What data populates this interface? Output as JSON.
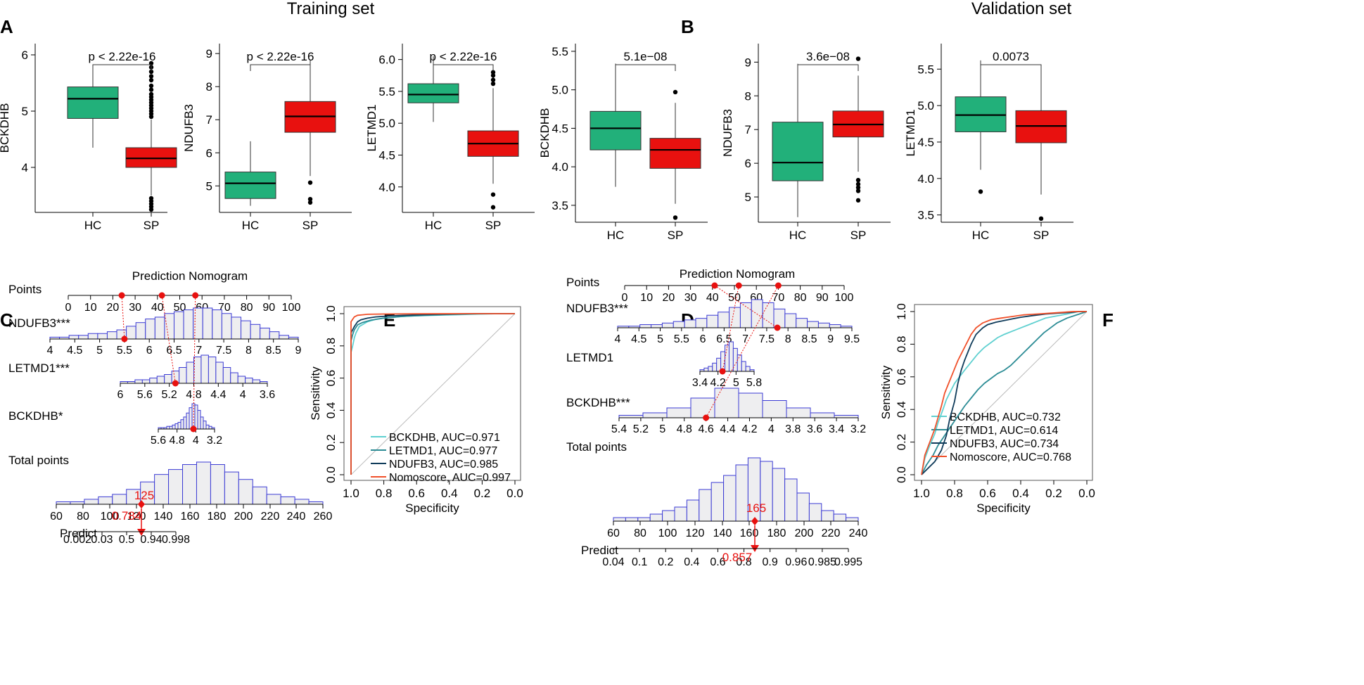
{
  "colors": {
    "hc": "#22B07A",
    "sp": "#E8110F",
    "hist_stroke": "#3B3BD4",
    "hist_fill": "#EEEEF0",
    "marker": "#E8110F",
    "roc_bckdhb": "#5FD0D0",
    "roc_letmd1": "#2C8C95",
    "roc_ndufb3": "#0F3B5A",
    "roc_nomo": "#F0502A"
  },
  "headings": {
    "training": "Training set",
    "validation": "Validation set"
  },
  "panel_labels": {
    "a": "A",
    "b": "B",
    "c": "C",
    "d": "D",
    "e": "E",
    "f": "F"
  },
  "chart_data": [
    {
      "id": "A1",
      "type": "box",
      "panel": "A",
      "ylabel": "BCKDHB",
      "ylim": [
        3.2,
        6.2
      ],
      "yticks": [
        4,
        5,
        6
      ],
      "categories": [
        "HC",
        "SP"
      ],
      "pvalue": "p < 2.22e-16",
      "boxes": [
        {
          "name": "HC",
          "whisker_low": 4.35,
          "q1": 4.87,
          "median": 5.22,
          "q3": 5.43,
          "whisker_high": 5.75,
          "outliers": []
        },
        {
          "name": "SP",
          "whisker_low": 3.5,
          "q1": 4.0,
          "median": 4.16,
          "q3": 4.35,
          "whisker_high": 4.85,
          "outliers": [
            4.9,
            4.95,
            5.0,
            5.05,
            5.1,
            5.15,
            5.2,
            5.25,
            5.3,
            5.38,
            5.45,
            5.55,
            5.62,
            5.7,
            5.78,
            5.85,
            3.45,
            3.4,
            3.35,
            3.3,
            3.25
          ]
        }
      ]
    },
    {
      "id": "A2",
      "type": "box",
      "panel": "A",
      "ylabel": "NDUFB3",
      "ylim": [
        4.2,
        9.3
      ],
      "yticks": [
        5,
        6,
        7,
        8,
        9
      ],
      "categories": [
        "HC",
        "SP"
      ],
      "pvalue": "p < 2.22e-16",
      "boxes": [
        {
          "name": "HC",
          "whisker_low": 4.4,
          "q1": 4.62,
          "median": 5.08,
          "q3": 5.42,
          "whisker_high": 6.35,
          "outliers": []
        },
        {
          "name": "SP",
          "whisker_low": 5.3,
          "q1": 6.62,
          "median": 7.1,
          "q3": 7.55,
          "whisker_high": 8.8,
          "outliers": [
            5.1,
            4.6,
            4.5
          ]
        }
      ]
    },
    {
      "id": "A3",
      "type": "box",
      "panel": "A",
      "ylabel": "LETMD1",
      "ylim": [
        3.6,
        6.25
      ],
      "yticks": [
        4.0,
        4.5,
        5.0,
        5.5,
        6.0
      ],
      "categories": [
        "HC",
        "SP"
      ],
      "pvalue": "p < 2.22e-16",
      "boxes": [
        {
          "name": "HC",
          "whisker_low": 5.02,
          "q1": 5.32,
          "median": 5.45,
          "q3": 5.62,
          "whisker_high": 6.05,
          "outliers": []
        },
        {
          "name": "SP",
          "whisker_low": 4.05,
          "q1": 4.48,
          "median": 4.68,
          "q3": 4.88,
          "whisker_high": 5.55,
          "outliers": [
            5.62,
            5.68,
            5.75,
            5.8,
            3.88,
            3.68
          ]
        }
      ]
    },
    {
      "id": "B1",
      "type": "box",
      "panel": "B",
      "ylabel": "BCKDHB",
      "ylim": [
        3.28,
        5.6
      ],
      "yticks": [
        3.5,
        4.0,
        4.5,
        5.0,
        5.5
      ],
      "categories": [
        "HC",
        "SP"
      ],
      "pvalue": "5.1e−08",
      "boxes": [
        {
          "name": "HC",
          "whisker_low": 3.74,
          "q1": 4.22,
          "median": 4.5,
          "q3": 4.72,
          "whisker_high": 5.34,
          "outliers": []
        },
        {
          "name": "SP",
          "whisker_low": 3.52,
          "q1": 3.98,
          "median": 4.22,
          "q3": 4.37,
          "whisker_high": 4.83,
          "outliers": [
            4.97,
            3.34
          ]
        }
      ]
    },
    {
      "id": "B2",
      "type": "box",
      "panel": "B",
      "ylabel": "NDUFB3",
      "ylim": [
        4.25,
        9.55
      ],
      "yticks": [
        5,
        6,
        7,
        8,
        9
      ],
      "categories": [
        "HC",
        "SP"
      ],
      "pvalue": "3.6e−08",
      "boxes": [
        {
          "name": "HC",
          "whisker_low": 4.4,
          "q1": 5.48,
          "median": 6.02,
          "q3": 7.22,
          "whisker_high": 8.95,
          "outliers": []
        },
        {
          "name": "SP",
          "whisker_low": 5.75,
          "q1": 6.78,
          "median": 7.15,
          "q3": 7.55,
          "whisker_high": 8.6,
          "outliers": [
            9.1,
            5.5,
            5.38,
            5.28,
            5.18,
            4.9
          ]
        }
      ]
    },
    {
      "id": "B3",
      "type": "box",
      "panel": "B",
      "ylabel": "LETMD1",
      "ylim": [
        3.4,
        5.85
      ],
      "yticks": [
        3.5,
        4.0,
        4.5,
        5.0,
        5.5
      ],
      "categories": [
        "HC",
        "SP"
      ],
      "pvalue": "0.0073",
      "boxes": [
        {
          "name": "HC",
          "whisker_low": 4.12,
          "q1": 4.64,
          "median": 4.87,
          "q3": 5.12,
          "whisker_high": 5.62,
          "outliers": [
            3.82
          ]
        },
        {
          "name": "SP",
          "whisker_low": 3.78,
          "q1": 4.49,
          "median": 4.72,
          "q3": 4.93,
          "whisker_high": 5.55,
          "outliers": [
            3.45
          ]
        }
      ]
    },
    {
      "id": "E",
      "type": "line",
      "panel": "E",
      "xlabel": "Specificity",
      "ylabel": "Sensitivity",
      "xlim": [
        1.0,
        0.0
      ],
      "ylim": [
        0,
        1
      ],
      "xticks": [
        1.0,
        0.8,
        0.6,
        0.4,
        0.2,
        0.0
      ],
      "yticks": [
        0.0,
        0.2,
        0.4,
        0.6,
        0.8,
        1.0
      ],
      "series": [
        {
          "name": "BCKDHB",
          "label": "BCKDHB, AUC=0.971",
          "color": "#5FD0D0",
          "x": [
            1.0,
            1.0,
            0.99,
            0.98,
            0.97,
            0.95,
            0.9,
            0.85,
            0.78,
            0.65,
            0.5,
            0.3,
            0.1,
            0.0
          ],
          "y": [
            0.0,
            0.76,
            0.8,
            0.85,
            0.88,
            0.92,
            0.95,
            0.965,
            0.975,
            0.985,
            0.99,
            0.995,
            1.0,
            1.0
          ]
        },
        {
          "name": "LETMD1",
          "label": "LETMD1, AUC=0.977",
          "color": "#2C8C95",
          "x": [
            1.0,
            1.0,
            0.99,
            0.98,
            0.96,
            0.93,
            0.88,
            0.8,
            0.7,
            0.55,
            0.4,
            0.2,
            0.0
          ],
          "y": [
            0.0,
            0.83,
            0.87,
            0.9,
            0.93,
            0.945,
            0.96,
            0.972,
            0.982,
            0.99,
            0.995,
            1.0,
            1.0
          ]
        },
        {
          "name": "NDUFB3",
          "label": "NDUFB3, AUC=0.985",
          "color": "#0F3B5A",
          "x": [
            1.0,
            1.0,
            0.99,
            0.98,
            0.96,
            0.94,
            0.9,
            0.85,
            0.75,
            0.6,
            0.45,
            0.25,
            0.0
          ],
          "y": [
            0.0,
            0.88,
            0.9,
            0.92,
            0.95,
            0.962,
            0.972,
            0.98,
            0.987,
            0.993,
            0.997,
            1.0,
            1.0
          ]
        },
        {
          "name": "Nomoscore",
          "label": "Nomoscore, AUC=0.997",
          "color": "#F0502A",
          "x": [
            1.0,
            1.0,
            0.99,
            0.98,
            0.96,
            0.93,
            0.9,
            0.8,
            0.6,
            0.3,
            0.0
          ],
          "y": [
            0.0,
            0.95,
            0.965,
            0.98,
            0.99,
            0.993,
            0.996,
            0.998,
            0.999,
            1.0,
            1.0
          ]
        }
      ]
    },
    {
      "id": "F",
      "type": "line",
      "panel": "F",
      "xlabel": "Specificity",
      "ylabel": "Sensitivity",
      "xlim": [
        1.0,
        0.0
      ],
      "ylim": [
        0,
        1
      ],
      "xticks": [
        1.0,
        0.8,
        0.6,
        0.4,
        0.2,
        0.0
      ],
      "yticks": [
        0.0,
        0.2,
        0.4,
        0.6,
        0.8,
        1.0
      ],
      "series": [
        {
          "name": "BCKDHB",
          "label": "BCKDHB, AUC=0.732",
          "color": "#5FD0D0",
          "x": [
            1.0,
            0.98,
            0.95,
            0.92,
            0.9,
            0.87,
            0.85,
            0.82,
            0.8,
            0.77,
            0.74,
            0.7,
            0.66,
            0.62,
            0.58,
            0.54,
            0.5,
            0.45,
            0.4,
            0.35,
            0.3,
            0.25,
            0.2,
            0.12,
            0.05,
            0.0
          ],
          "y": [
            0.0,
            0.1,
            0.18,
            0.25,
            0.32,
            0.4,
            0.46,
            0.52,
            0.56,
            0.6,
            0.64,
            0.69,
            0.74,
            0.78,
            0.81,
            0.84,
            0.86,
            0.88,
            0.9,
            0.92,
            0.94,
            0.96,
            0.97,
            0.985,
            1.0,
            1.0
          ]
        },
        {
          "name": "LETMD1",
          "label": "LETMD1, AUC=0.614",
          "color": "#2C8C95",
          "x": [
            1.0,
            0.97,
            0.93,
            0.9,
            0.86,
            0.82,
            0.78,
            0.74,
            0.7,
            0.66,
            0.62,
            0.58,
            0.54,
            0.5,
            0.46,
            0.42,
            0.38,
            0.34,
            0.3,
            0.26,
            0.22,
            0.18,
            0.12,
            0.06,
            0.0
          ],
          "y": [
            0.0,
            0.06,
            0.12,
            0.18,
            0.24,
            0.3,
            0.36,
            0.42,
            0.47,
            0.52,
            0.56,
            0.59,
            0.62,
            0.64,
            0.67,
            0.71,
            0.75,
            0.79,
            0.83,
            0.87,
            0.9,
            0.93,
            0.96,
            0.98,
            1.0
          ]
        },
        {
          "name": "NDUFB3",
          "label": "NDUFB3, AUC=0.734",
          "color": "#0F3B5A",
          "x": [
            1.0,
            0.96,
            0.92,
            0.88,
            0.85,
            0.83,
            0.8,
            0.78,
            0.76,
            0.74,
            0.72,
            0.7,
            0.67,
            0.63,
            0.6,
            0.55,
            0.5,
            0.45,
            0.4,
            0.33,
            0.25,
            0.18,
            0.1,
            0.05,
            0.0
          ],
          "y": [
            0.0,
            0.04,
            0.08,
            0.15,
            0.24,
            0.34,
            0.45,
            0.56,
            0.64,
            0.7,
            0.75,
            0.8,
            0.86,
            0.9,
            0.92,
            0.935,
            0.945,
            0.955,
            0.965,
            0.975,
            0.985,
            0.99,
            0.995,
            1.0,
            1.0
          ]
        },
        {
          "name": "Nomoscore",
          "label": "Nomoscore, AUC=0.768",
          "color": "#F0502A",
          "x": [
            1.0,
            0.98,
            0.95,
            0.92,
            0.9,
            0.88,
            0.86,
            0.84,
            0.82,
            0.8,
            0.78,
            0.76,
            0.74,
            0.72,
            0.7,
            0.67,
            0.63,
            0.58,
            0.52,
            0.45,
            0.38,
            0.3,
            0.22,
            0.15,
            0.08,
            0.0
          ],
          "y": [
            0.0,
            0.12,
            0.2,
            0.28,
            0.35,
            0.42,
            0.5,
            0.55,
            0.6,
            0.65,
            0.7,
            0.74,
            0.78,
            0.82,
            0.86,
            0.9,
            0.93,
            0.95,
            0.96,
            0.97,
            0.98,
            0.985,
            0.99,
            0.995,
            1.0,
            1.0
          ]
        }
      ]
    },
    {
      "id": "C",
      "type": "nomogram",
      "panel": "C",
      "title": "Prediction Nomogram",
      "points_label": "Points",
      "points_ticks": [
        0,
        10,
        20,
        30,
        40,
        50,
        60,
        70,
        80,
        90,
        100
      ],
      "points_markers": [
        24,
        42,
        57
      ],
      "variables": [
        {
          "name": "NDUFB3***",
          "ticks": [
            "4",
            "4.5",
            "5",
            "5.5",
            "6",
            "6.5",
            "7",
            "7.5",
            "8",
            "8.5",
            "9"
          ],
          "marker": 5.5,
          "hist": [
            1,
            1,
            2,
            2,
            3,
            3,
            4,
            5,
            7,
            9,
            11,
            12,
            14,
            15,
            16,
            17,
            17,
            16,
            14,
            12,
            10,
            8,
            6,
            4,
            2,
            1
          ]
        },
        {
          "name": "LETMD1***",
          "ticks": [
            "6",
            "5.6",
            "5.2",
            "4.8",
            "4.4",
            "4",
            "3.6"
          ],
          "marker": 5.1,
          "hist": [
            1,
            1,
            2,
            2,
            3,
            4,
            5,
            7,
            9,
            12,
            15,
            16,
            15,
            12,
            9,
            6,
            4,
            3,
            2,
            1
          ]
        },
        {
          "name": "BCKDHB*",
          "ticks": [
            "5.6",
            "4.8",
            "4",
            "3.2"
          ],
          "marker": 4.1,
          "hist": [
            1,
            1,
            1,
            2,
            2,
            3,
            4,
            5,
            7,
            9,
            12,
            16,
            19,
            18,
            14,
            9,
            6,
            3,
            2,
            1
          ]
        }
      ],
      "total_label": "Total points",
      "total_ticks": [
        60,
        80,
        100,
        120,
        140,
        160,
        180,
        200,
        220,
        240,
        260
      ],
      "total_value": "125",
      "total_hist": [
        1,
        1,
        2,
        3,
        4,
        6,
        9,
        12,
        14,
        16,
        17,
        16,
        13,
        10,
        7,
        4,
        3,
        2,
        1
      ],
      "predict_label": "Predict",
      "predict_ticks": [
        "0.002",
        "0.03",
        "0.5",
        "0.94",
        "0.998"
      ],
      "predict_value": "0.784"
    },
    {
      "id": "D",
      "type": "nomogram",
      "panel": "D",
      "title": "Prediction Nomogram",
      "points_label": "Points",
      "points_ticks": [
        0,
        10,
        20,
        30,
        40,
        50,
        60,
        70,
        80,
        90,
        100
      ],
      "points_markers": [
        41,
        52,
        70
      ],
      "variables": [
        {
          "name": "NDUFB3***",
          "ticks": [
            "4",
            "4.5",
            "5",
            "5.5",
            "6",
            "6.5",
            "7",
            "7.5",
            "8",
            "8.5",
            "9",
            "9.5"
          ],
          "marker": 7.75,
          "hist": [
            1,
            1,
            2,
            2,
            3,
            4,
            5,
            6,
            8,
            10,
            13,
            16,
            18,
            16,
            12,
            9,
            6,
            4,
            3,
            2,
            1
          ]
        },
        {
          "name": "LETMD1",
          "ticks": [
            "3.4",
            "4.2",
            "5",
            "5.8"
          ],
          "marker": 4.4,
          "hist": [
            1,
            2,
            3,
            5,
            8,
            12,
            16,
            18,
            14,
            10,
            6,
            3,
            1
          ]
        },
        {
          "name": "BCKDHB***",
          "ticks": [
            "5.4",
            "5.2",
            "5",
            "4.8",
            "4.6",
            "4.4",
            "4.2",
            "4",
            "3.8",
            "3.6",
            "3.4",
            "3.2"
          ],
          "marker": 4.6,
          "hist": [
            1,
            2,
            4,
            8,
            12,
            10,
            7,
            4,
            2,
            1
          ]
        }
      ],
      "total_label": "Total points",
      "total_ticks": [
        60,
        80,
        100,
        120,
        140,
        160,
        180,
        200,
        220,
        240
      ],
      "total_value": "165",
      "total_hist": [
        1,
        1,
        1,
        2,
        3,
        4,
        6,
        9,
        11,
        13,
        16,
        18,
        17,
        15,
        12,
        8,
        5,
        3,
        2,
        1
      ],
      "predict_label": "Predict",
      "predict_ticks": [
        "0.04",
        "0.1",
        "0.2",
        "0.4",
        "0.6",
        "0.8",
        "0.9",
        "0.96",
        "0.985",
        "0.995"
      ],
      "predict_value": "0.857"
    }
  ]
}
